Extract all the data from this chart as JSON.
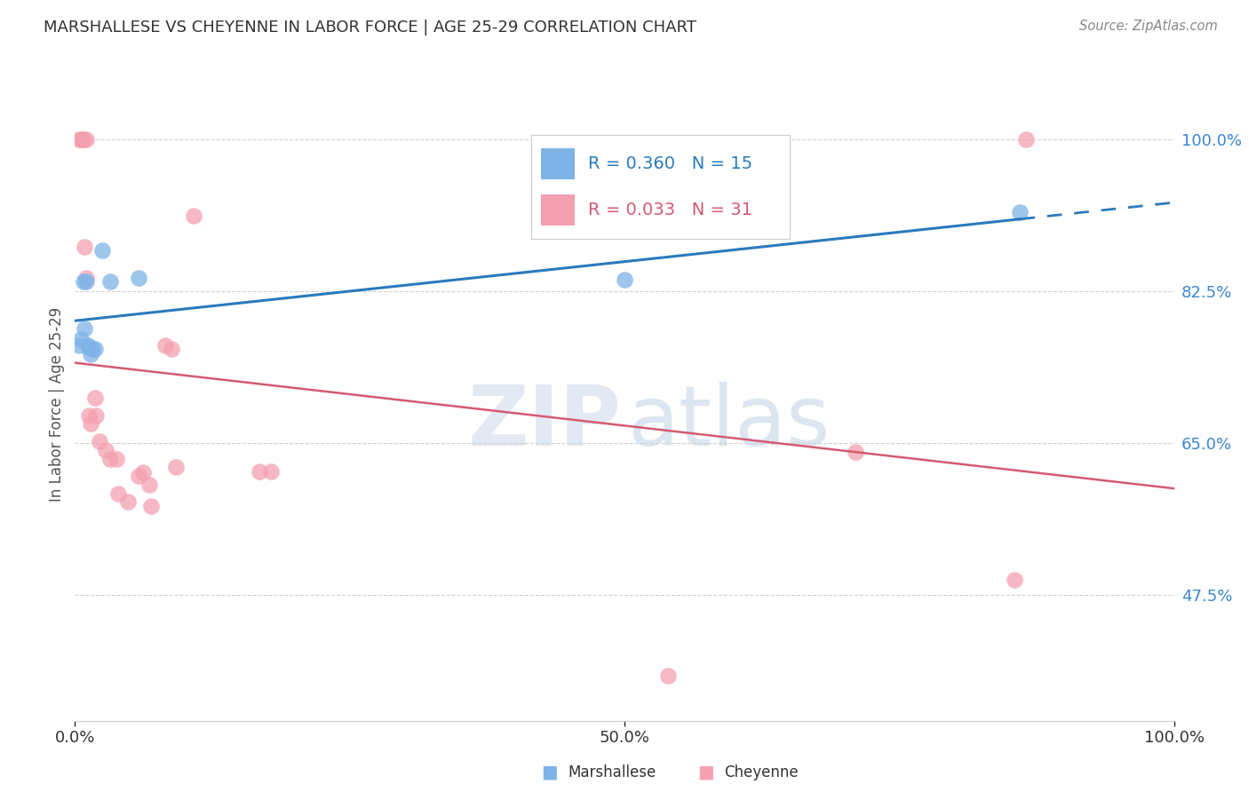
{
  "title": "MARSHALLESE VS CHEYENNE IN LABOR FORCE | AGE 25-29 CORRELATION CHART",
  "source": "Source: ZipAtlas.com",
  "ylabel": "In Labor Force | Age 25-29",
  "xlim": [
    0.0,
    1.0
  ],
  "ylim": [
    0.33,
    1.06
  ],
  "yticks": [
    0.475,
    0.65,
    0.825,
    1.0
  ],
  "ytick_labels": [
    "47.5%",
    "65.0%",
    "82.5%",
    "100.0%"
  ],
  "marshallese_R": 0.36,
  "marshallese_N": 15,
  "cheyenne_R": 0.033,
  "cheyenne_N": 31,
  "marshallese_color": "#7eb3e8",
  "cheyenne_color": "#f4a0b0",
  "trend_marshallese_color": "#2b7abd",
  "trend_cheyenne_color": "#d45a72",
  "marshallese_x": [
    0.004,
    0.005,
    0.008,
    0.009,
    0.01,
    0.012,
    0.013,
    0.014,
    0.016,
    0.018,
    0.025,
    0.032,
    0.058,
    0.5,
    0.86
  ],
  "marshallese_y": [
    0.762,
    0.77,
    0.836,
    0.782,
    0.836,
    0.762,
    0.76,
    0.752,
    0.758,
    0.758,
    0.872,
    0.836,
    0.84,
    0.838,
    0.916
  ],
  "cheyenne_x": [
    0.004,
    0.005,
    0.007,
    0.008,
    0.009,
    0.01,
    0.01,
    0.013,
    0.014,
    0.018,
    0.019,
    0.022,
    0.028,
    0.032,
    0.038,
    0.039,
    0.048,
    0.058,
    0.062,
    0.068,
    0.069,
    0.082,
    0.088,
    0.092,
    0.108,
    0.168,
    0.178,
    0.54,
    0.71,
    0.855,
    0.865
  ],
  "cheyenne_y": [
    1.0,
    1.0,
    1.0,
    1.0,
    0.876,
    0.84,
    1.0,
    0.682,
    0.672,
    0.702,
    0.682,
    0.652,
    0.642,
    0.632,
    0.632,
    0.592,
    0.582,
    0.612,
    0.616,
    0.602,
    0.577,
    0.762,
    0.758,
    0.622,
    0.912,
    0.617,
    0.617,
    0.382,
    0.64,
    0.492,
    1.0
  ],
  "watermark_zip": "ZIP",
  "watermark_atlas": "atlas",
  "background_color": "#ffffff",
  "grid_color": "#d0d0d0",
  "title_color": "#333333",
  "axis_label_color": "#555555",
  "ytick_color": "#3a86d4",
  "xtick_color": "#333333",
  "legend_box_color": "#f0f4fa",
  "legend_border_color": "#cccccc"
}
